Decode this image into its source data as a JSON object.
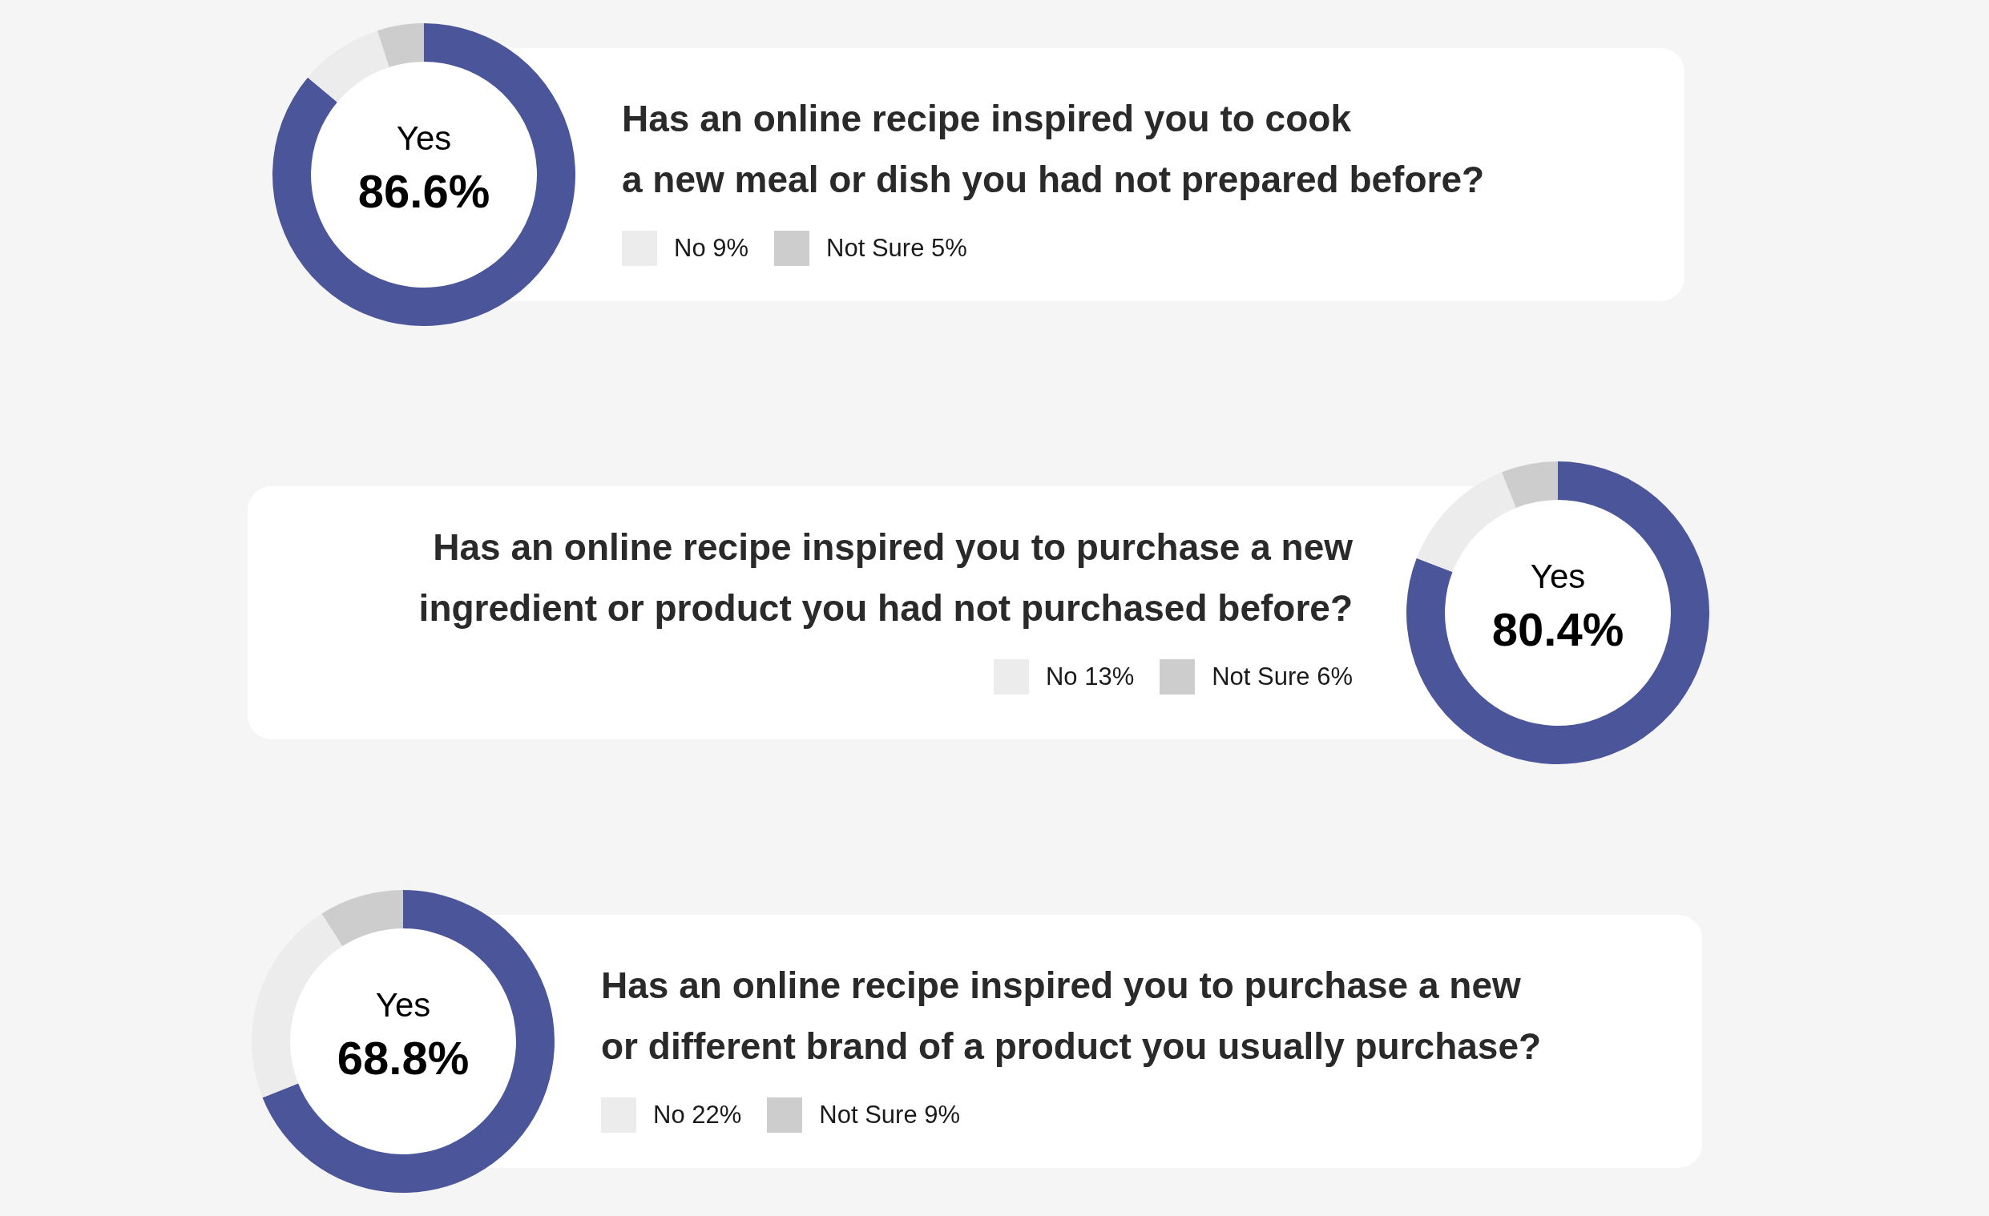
{
  "chart_data": [
    {
      "type": "donut",
      "title": "Has an online recipe inspired you to cook\na new meal or dish you had not prepared before?",
      "categories": [
        "Yes",
        "No",
        "Not Sure"
      ],
      "values": [
        86.6,
        9,
        5
      ],
      "colors": [
        "#4b5599",
        "#ececec",
        "#cdcdcd"
      ],
      "value_labels": [
        "86.6%",
        "9%",
        "5%"
      ],
      "legend": "right"
    },
    {
      "type": "donut",
      "title": "Has an online recipe inspired you to purchase a new\ningredient or product you had not purchased before?",
      "categories": [
        "Yes",
        "No",
        "Not Sure"
      ],
      "values": [
        80.4,
        13,
        6
      ],
      "colors": [
        "#4b5599",
        "#ececec",
        "#cdcdcd"
      ],
      "value_labels": [
        "80.4%",
        "13%",
        "6%"
      ],
      "legend": "left"
    },
    {
      "type": "donut",
      "title": "Has an online recipe inspired you to purchase a new\nor different brand of a product you usually purchase?",
      "categories": [
        "Yes",
        "No",
        "Not Sure"
      ],
      "values": [
        68.8,
        22,
        9
      ],
      "colors": [
        "#4b5599",
        "#ececec",
        "#cdcdcd"
      ],
      "value_labels": [
        "68.8%",
        "22%",
        "9%"
      ],
      "legend": "right"
    }
  ]
}
